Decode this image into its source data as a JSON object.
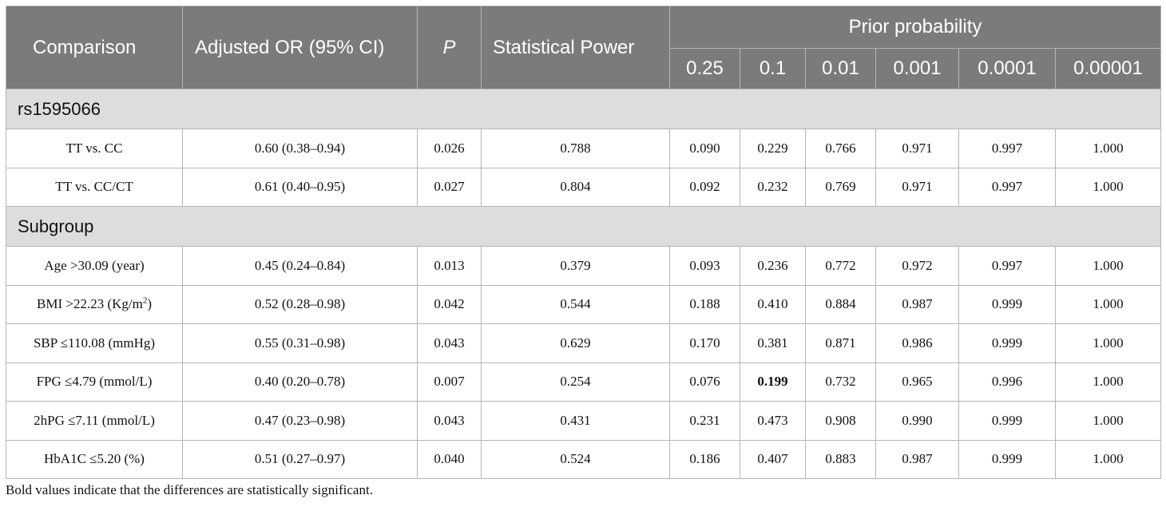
{
  "table": {
    "headers": {
      "comparison": "Comparison",
      "adjusted_or": "Adjusted OR (95% CI)",
      "p": "P",
      "statistical_power": "Statistical Power",
      "prior_probability": "Prior probability",
      "priors": [
        "0.25",
        "0.1",
        "0.01",
        "0.001",
        "0.0001",
        "0.00001"
      ]
    },
    "sections": [
      {
        "title": "rs1595066",
        "rows": [
          {
            "comparison": "TT vs. CC",
            "or": "0.60 (0.38–0.94)",
            "p": "0.026",
            "power": "0.788",
            "values": [
              "0.090",
              "0.229",
              "0.766",
              "0.971",
              "0.997",
              "1.000"
            ]
          },
          {
            "comparison": "TT vs. CC/CT",
            "or": "0.61 (0.40–0.95)",
            "p": "0.027",
            "power": "0.804",
            "values": [
              "0.092",
              "0.232",
              "0.769",
              "0.971",
              "0.997",
              "1.000"
            ]
          }
        ]
      },
      {
        "title": "Subgroup",
        "rows": [
          {
            "comparison": "Age >30.09 (year)",
            "or": "0.45 (0.24–0.84)",
            "p": "0.013",
            "power": "0.379",
            "values": [
              "0.093",
              "0.236",
              "0.772",
              "0.972",
              "0.997",
              "1.000"
            ]
          },
          {
            "comparison_pre": "BMI >22.23 (Kg/m",
            "comparison_sup": "2",
            "comparison_post": ")",
            "or": "0.52 (0.28–0.98)",
            "p": "0.042",
            "power": "0.544",
            "values": [
              "0.188",
              "0.410",
              "0.884",
              "0.987",
              "0.999",
              "1.000"
            ]
          },
          {
            "comparison": "SBP ≤110.08 (mmHg)",
            "or": "0.55 (0.31–0.98)",
            "p": "0.043",
            "power": "0.629",
            "values": [
              "0.170",
              "0.381",
              "0.871",
              "0.986",
              "0.999",
              "1.000"
            ]
          },
          {
            "comparison": "FPG ≤4.79 (mmol/L)",
            "or": "0.40 (0.20–0.78)",
            "p": "0.007",
            "power": "0.254",
            "values": [
              "0.076",
              "0.199",
              "0.732",
              "0.965",
              "0.996",
              "1.000"
            ]
          },
          {
            "comparison": "2hPG ≤7.11 (mmol/L)",
            "or": "0.47 (0.23–0.98)",
            "p": "0.043",
            "power": "0.431",
            "values": [
              "0.231",
              "0.473",
              "0.908",
              "0.990",
              "0.999",
              "1.000"
            ]
          },
          {
            "comparison": "HbA1C ≤5.20 (%)",
            "or": "0.51 (0.27–0.97)",
            "p": "0.040",
            "power": "0.524",
            "values": [
              "0.186",
              "0.407",
              "0.883",
              "0.987",
              "0.999",
              "1.000"
            ]
          }
        ]
      }
    ]
  },
  "footnote": "Bold values indicate that the differences are statistically significant."
}
